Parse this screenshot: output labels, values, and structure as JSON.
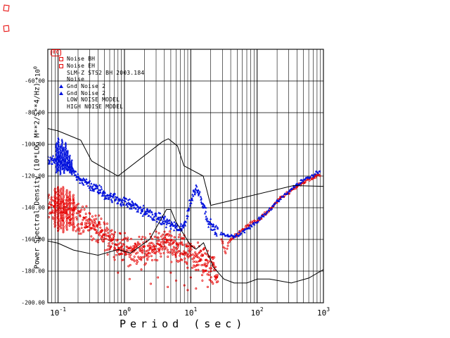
{
  "icons": {
    "oo_badge": "OO",
    "corner_mark_color": "#e60000"
  },
  "legend": {
    "items": [
      {
        "label": "Noise BH",
        "marker": "square",
        "color": "#e60000"
      },
      {
        "label": "Noise EH",
        "marker": "square",
        "color": "#e60000"
      },
      {
        "label": "SLM-Z STS2 BH 2003.184",
        "marker": "none",
        "color": "#000000"
      },
      {
        "label": "Noise",
        "marker": "none",
        "color": "#000000"
      },
      {
        "label": "Gnd Noise 2",
        "marker": "triangle",
        "color": "#0010dd"
      },
      {
        "label": "Gnd Noise 2",
        "marker": "triangle",
        "color": "#0010dd"
      },
      {
        "label": "LOW NOISE MODEL",
        "marker": "none",
        "color": "#000000"
      },
      {
        "label": "HIGH NOISE MODEL",
        "marker": "none",
        "color": "#000000"
      }
    ]
  },
  "chart_data": {
    "type": "scatter",
    "title": "SLM-Z STS2 BH 2003.184",
    "xlabel": "Period (sec)",
    "ylabel": "Power Spectral Density (10*LOG M**2/S**4/Hz)",
    "y_scale": {
      "base": "*10",
      "exp": "0"
    },
    "x_scale": "log",
    "xlim": [
      0.07,
      1000
    ],
    "ylim": [
      -200,
      -40
    ],
    "grid": true,
    "legend_position": "upper-left",
    "x_ticks": [
      {
        "v": 0.1,
        "base": "10",
        "exp": "-1"
      },
      {
        "v": 1,
        "base": "10",
        "exp": "0"
      },
      {
        "v": 10,
        "base": "10",
        "exp": "1"
      },
      {
        "v": 100,
        "base": "10",
        "exp": "2"
      },
      {
        "v": 1000,
        "base": "10",
        "exp": "3"
      }
    ],
    "y_ticks": [
      {
        "v": -200,
        "label": "-200.00"
      },
      {
        "v": -180,
        "label": "-180.00"
      },
      {
        "v": -160,
        "label": "-160.00"
      },
      {
        "v": -140,
        "label": "-140.00"
      },
      {
        "v": -120,
        "label": "-120.00"
      },
      {
        "v": -100,
        "label": "-100.00"
      },
      {
        "v": -80,
        "label": "-80.00"
      },
      {
        "v": -60,
        "label": "-60.00"
      }
    ],
    "series": [
      {
        "name": "Noise BH",
        "color": "#e60000",
        "marker": "circle",
        "render": "scatter",
        "segments": [
          {
            "spread": 11,
            "points": [
              [
                0.07,
                -140
              ],
              [
                0.09,
                -139
              ],
              [
                0.11,
                -139
              ],
              [
                0.13,
                -141
              ],
              [
                0.16,
                -143
              ],
              [
                0.2,
                -146
              ],
              [
                0.25,
                -148
              ],
              [
                0.31,
                -151
              ],
              [
                0.39,
                -154
              ],
              [
                0.49,
                -157
              ],
              [
                0.62,
                -160
              ],
              [
                0.78,
                -163
              ],
              [
                0.98,
                -166
              ],
              [
                1.23,
                -168
              ],
              [
                1.55,
                -168
              ],
              [
                1.95,
                -167
              ],
              [
                2.46,
                -165
              ],
              [
                3.1,
                -164
              ],
              [
                3.9,
                -163
              ],
              [
                4.9,
                -163
              ],
              [
                6.2,
                -165
              ],
              [
                7.8,
                -167
              ],
              [
                9.8,
                -169
              ],
              [
                12.3,
                -171
              ],
              [
                15.5,
                -174
              ],
              [
                19.5,
                -177
              ],
              [
                24.6,
                -180
              ],
              [
                26,
                -182
              ]
            ]
          },
          {
            "spread": 1.3,
            "points": [
              [
                29,
                -160
              ],
              [
                32,
                -166
              ],
              [
                34,
                -169
              ],
              [
                36,
                -164
              ],
              [
                40,
                -160
              ],
              [
                45,
                -158
              ],
              [
                50,
                -157
              ],
              [
                57,
                -155
              ],
              [
                65,
                -153
              ],
              [
                75,
                -151
              ],
              [
                85,
                -149
              ],
              [
                95,
                -149
              ],
              [
                110,
                -147
              ],
              [
                130,
                -144
              ],
              [
                150,
                -142
              ],
              [
                175,
                -139
              ],
              [
                200,
                -136
              ],
              [
                240,
                -133
              ],
              [
                280,
                -131
              ],
              [
                330,
                -129
              ],
              [
                390,
                -127
              ],
              [
                460,
                -125
              ],
              [
                550,
                -123
              ],
              [
                650,
                -122
              ],
              [
                780,
                -120
              ],
              [
                900,
                -119
              ]
            ]
          }
        ],
        "spikes": [
          [
            0.09,
            -152,
            -128
          ],
          [
            0.1,
            -155,
            -127
          ],
          [
            0.11,
            -153,
            -128
          ],
          [
            0.12,
            -156,
            -127
          ],
          [
            0.135,
            -154,
            -129
          ],
          [
            0.15,
            -152,
            -130
          ],
          [
            0.17,
            -155,
            -132
          ]
        ],
        "outliers": [
          [
            0.8,
            -181
          ],
          [
            1.2,
            -185
          ],
          [
            1.8,
            -179
          ],
          [
            2.5,
            -188
          ],
          [
            3.2,
            -184
          ],
          [
            4.5,
            -190
          ],
          [
            5,
            -181
          ],
          [
            6,
            -186
          ],
          [
            8,
            -189
          ],
          [
            9,
            -192
          ],
          [
            10,
            -184
          ],
          [
            12,
            -191
          ],
          [
            15,
            -186
          ],
          [
            18,
            -190
          ],
          [
            21,
            -187
          ],
          [
            24,
            -184
          ]
        ]
      },
      {
        "name": "Gnd Noise",
        "color": "#0010dd",
        "marker": "triangle",
        "render": "scatter",
        "segments": [
          {
            "spread": 3.8,
            "points": [
              [
                0.07,
                -111
              ],
              [
                0.09,
                -110
              ],
              [
                0.11,
                -111
              ],
              [
                0.13,
                -113
              ],
              [
                0.16,
                -116
              ],
              [
                0.2,
                -120
              ],
              [
                0.25,
                -124
              ],
              [
                0.31,
                -126
              ],
              [
                0.39,
                -128
              ],
              [
                0.49,
                -131
              ],
              [
                0.62,
                -133
              ],
              [
                0.78,
                -135
              ],
              [
                0.98,
                -136
              ],
              [
                1.23,
                -138
              ],
              [
                1.55,
                -140
              ],
              [
                1.95,
                -142
              ],
              [
                2.46,
                -144
              ],
              [
                3.1,
                -146
              ],
              [
                3.9,
                -148
              ],
              [
                4.9,
                -150
              ],
              [
                5.8,
                -152
              ],
              [
                6.6,
                -154
              ],
              [
                7.4,
                -153
              ],
              [
                8.2,
                -149
              ],
              [
                9,
                -143
              ],
              [
                9.9,
                -137
              ],
              [
                10.9,
                -131
              ],
              [
                12,
                -128
              ],
              [
                13.2,
                -130
              ],
              [
                14.5,
                -134
              ],
              [
                16,
                -140
              ],
              [
                17.6,
                -146
              ],
              [
                19.3,
                -150
              ],
              [
                21.3,
                -152
              ],
              [
                23.4,
                -154
              ],
              [
                25.8,
                -155
              ]
            ]
          },
          {
            "spread": 1.4,
            "points": [
              [
                28,
                -156
              ],
              [
                32,
                -157
              ],
              [
                37,
                -158
              ],
              [
                43,
                -158
              ],
              [
                50,
                -157
              ],
              [
                58,
                -156
              ],
              [
                67,
                -154
              ],
              [
                77,
                -152
              ],
              [
                89,
                -150
              ],
              [
                103,
                -148
              ],
              [
                120,
                -145
              ],
              [
                140,
                -143
              ],
              [
                165,
                -140
              ],
              [
                190,
                -137
              ],
              [
                220,
                -135
              ],
              [
                260,
                -132
              ],
              [
                300,
                -130
              ],
              [
                350,
                -127
              ],
              [
                410,
                -125
              ],
              [
                480,
                -123
              ],
              [
                560,
                -121
              ],
              [
                660,
                -120
              ],
              [
                780,
                -118
              ],
              [
                900,
                -117
              ]
            ]
          }
        ],
        "spikes": [
          [
            0.095,
            -118,
            -99
          ],
          [
            0.101,
            -117,
            -96
          ],
          [
            0.108,
            -119,
            -101
          ],
          [
            0.115,
            -116,
            -97
          ],
          [
            0.123,
            -118,
            -102
          ],
          [
            0.131,
            -115,
            -99
          ],
          [
            0.14,
            -117,
            -104
          ],
          [
            0.15,
            -118,
            -107
          ],
          [
            0.16,
            -119,
            -110
          ]
        ],
        "outliers": []
      },
      {
        "name": "LOW NOISE MODEL",
        "color": "#000000",
        "render": "line",
        "points": [
          [
            0.07,
            -161
          ],
          [
            0.1,
            -162.4
          ],
          [
            0.17,
            -166.7
          ],
          [
            0.4,
            -170
          ],
          [
            0.8,
            -166.4
          ],
          [
            1.24,
            -168.6
          ],
          [
            2.4,
            -160
          ],
          [
            4.3,
            -141.1
          ],
          [
            5,
            -141.1
          ],
          [
            6,
            -149
          ],
          [
            10,
            -163.8
          ],
          [
            12,
            -166.2
          ],
          [
            15.6,
            -162.1
          ],
          [
            21.9,
            -177.5
          ],
          [
            31.6,
            -185
          ],
          [
            45,
            -187.5
          ],
          [
            70,
            -187.5
          ],
          [
            101,
            -185
          ],
          [
            154,
            -185
          ],
          [
            328,
            -187.5
          ],
          [
            600,
            -184.4
          ],
          [
            1000,
            -179
          ]
        ]
      },
      {
        "name": "HIGH NOISE MODEL",
        "color": "#000000",
        "render": "line",
        "points": [
          [
            0.07,
            -90
          ],
          [
            0.1,
            -91.5
          ],
          [
            0.22,
            -97.4
          ],
          [
            0.32,
            -110.5
          ],
          [
            0.8,
            -120
          ],
          [
            3.8,
            -98.1
          ],
          [
            4.6,
            -96.5
          ],
          [
            6.3,
            -101
          ],
          [
            7.9,
            -113.5
          ],
          [
            15.4,
            -120
          ],
          [
            20,
            -138.5
          ],
          [
            354.8,
            -126
          ],
          [
            1000,
            -126.5
          ]
        ]
      }
    ]
  }
}
